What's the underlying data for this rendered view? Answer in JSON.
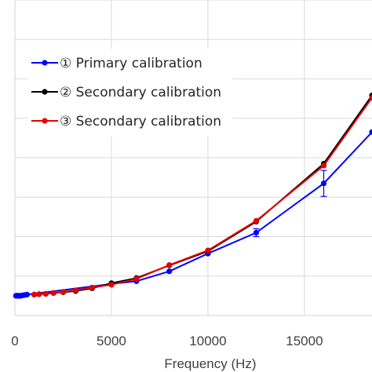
{
  "chart_data": {
    "type": "line",
    "xlabel": "Frequency (Hz)",
    "ylabel": "",
    "xlim": [
      0,
      18500
    ],
    "xticks": [
      0,
      5000,
      10000,
      15000
    ],
    "ylim": [
      0,
      8
    ],
    "grid": true,
    "legend_position": "top-left",
    "series": [
      {
        "name": "① Primary calibration",
        "color": "#0000ff",
        "x": [
          50,
          100,
          125,
          160,
          200,
          250,
          315,
          400,
          500,
          630,
          5000,
          6300,
          8000,
          10000,
          12500,
          16000,
          18500
        ],
        "y": [
          0.5,
          0.5,
          0.5,
          0.5,
          0.5,
          0.5,
          0.5,
          0.51,
          0.52,
          0.53,
          0.8,
          0.87,
          1.12,
          1.57,
          2.1,
          3.35,
          4.65
        ],
        "error": [
          0,
          0,
          0,
          0,
          0,
          0,
          0,
          0,
          0,
          0,
          0,
          0,
          0,
          0,
          0.1,
          0.33,
          0
        ]
      },
      {
        "name": "② Secondary calibration",
        "color": "#000000",
        "x": [
          1000,
          1250,
          1600,
          2000,
          2500,
          3150,
          4000,
          5000,
          6300,
          8000,
          10000,
          12500,
          16000,
          18500
        ],
        "y": [
          0.53,
          0.54,
          0.55,
          0.57,
          0.59,
          0.62,
          0.69,
          0.82,
          0.95,
          1.27,
          1.63,
          2.38,
          3.85,
          5.58
        ]
      },
      {
        "name": "③ Secondary calibration",
        "color": "#e60000",
        "x": [
          1000,
          1250,
          1600,
          2000,
          2500,
          3150,
          4000,
          5000,
          6300,
          8000,
          10000,
          12500,
          16000,
          18500
        ],
        "y": [
          0.53,
          0.54,
          0.55,
          0.57,
          0.6,
          0.64,
          0.71,
          0.78,
          0.93,
          1.28,
          1.65,
          2.4,
          3.8,
          5.52
        ]
      }
    ]
  }
}
